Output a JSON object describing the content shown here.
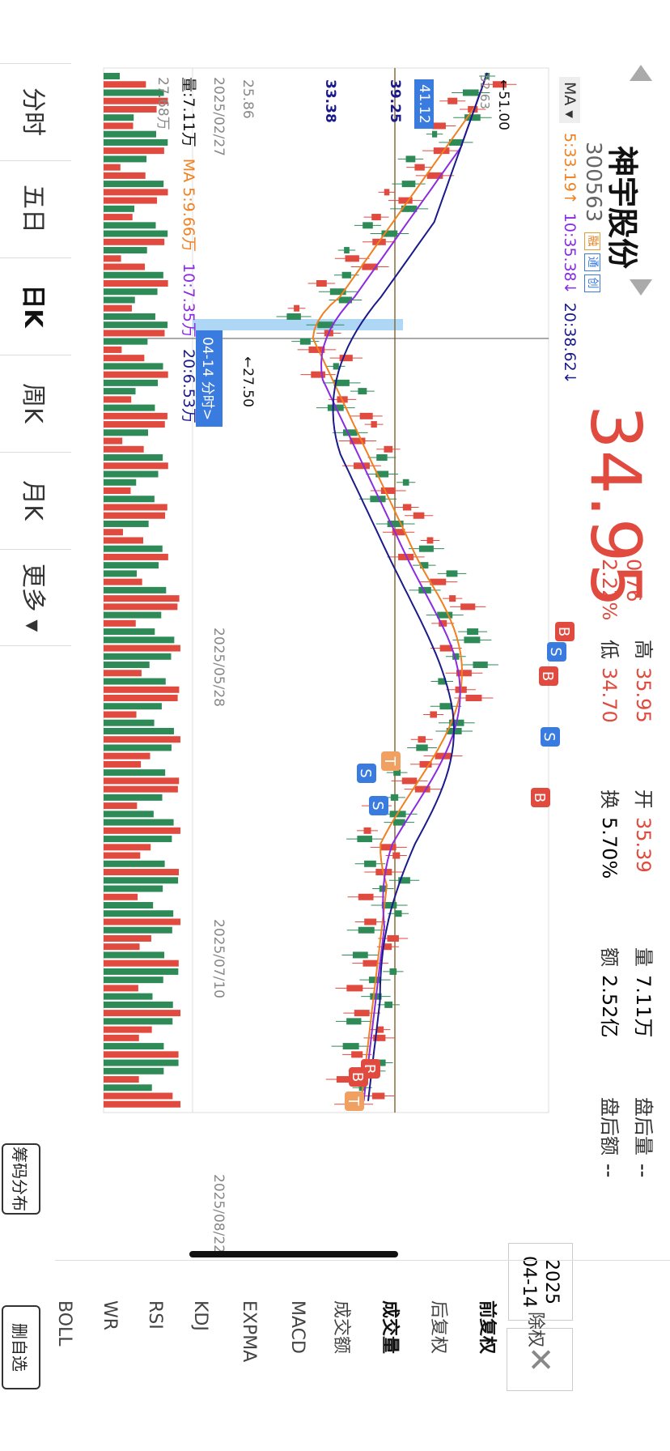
{
  "stock": {
    "name": "神宇股份",
    "code": "300563",
    "badges": [
      "融",
      "通",
      "创"
    ],
    "price": "34.95",
    "change": "0.76",
    "change_pct": "2.22%",
    "high_label": "高",
    "high": "35.95",
    "low_label": "低",
    "low": "34.70",
    "open_label": "开",
    "open": "35.39",
    "turnover_label": "换",
    "turnover": "5.70%",
    "volume_label": "量",
    "volume": "7.11万",
    "amount_label": "额",
    "amount": "2.52亿",
    "after_vol_label": "盘后量",
    "after_vol": "--",
    "after_amt_label": "盘后额",
    "after_amt": "--"
  },
  "ma_legend": {
    "dropdown": "MA ▾",
    "ma5": "5:33.19↑",
    "ma10": "10:35.38↓",
    "ma20": "20:38.62↓"
  },
  "price_axis": {
    "top_marker": "51.00",
    "top_value": "52.63",
    "current_box": "41.12",
    "label2": "39.25",
    "label3": "33.38",
    "label4": "25.86",
    "low_marker": "27.50"
  },
  "cursor_tag": "04-14 分时>",
  "vol_legend": {
    "vol": "量:7.11万",
    "ma": "MA 5:9.66万",
    "ma10": "10:7.35万",
    "ma20": "20:6.53万",
    "axis_top": "27.68万"
  },
  "dates": [
    "2025/02/27",
    "2025/05/28",
    "2025/07/10",
    "2025/08/22"
  ],
  "tabs": [
    {
      "label": "分时",
      "active": false
    },
    {
      "label": "五日",
      "active": false
    },
    {
      "label": "日K",
      "active": true
    },
    {
      "label": "周K",
      "active": false
    },
    {
      "label": "月K",
      "active": false
    },
    {
      "label": "更多 ▾",
      "active": false
    }
  ],
  "right_menu": {
    "date_year": "2025",
    "date_md": "04-14",
    "close": "✕",
    "items": [
      "除权",
      "前复权",
      "后复权",
      "成交量",
      "成交额",
      "MACD",
      "EXPMA",
      "KDJ",
      "RSI",
      "WR",
      "BOLL"
    ],
    "chip_btn": "筹码分布",
    "del_btn": "删自选"
  },
  "trade_markers": [
    "B",
    "S",
    "B",
    "S",
    "T",
    "S",
    "B",
    "S",
    "B",
    "B",
    "T"
  ],
  "colors": {
    "up": "#e04a3f",
    "down": "#2e8b57",
    "ma5": "#f08020",
    "ma10": "#8a2be2",
    "ma20": "#1a1a8c",
    "accent": "#3a7be0"
  }
}
